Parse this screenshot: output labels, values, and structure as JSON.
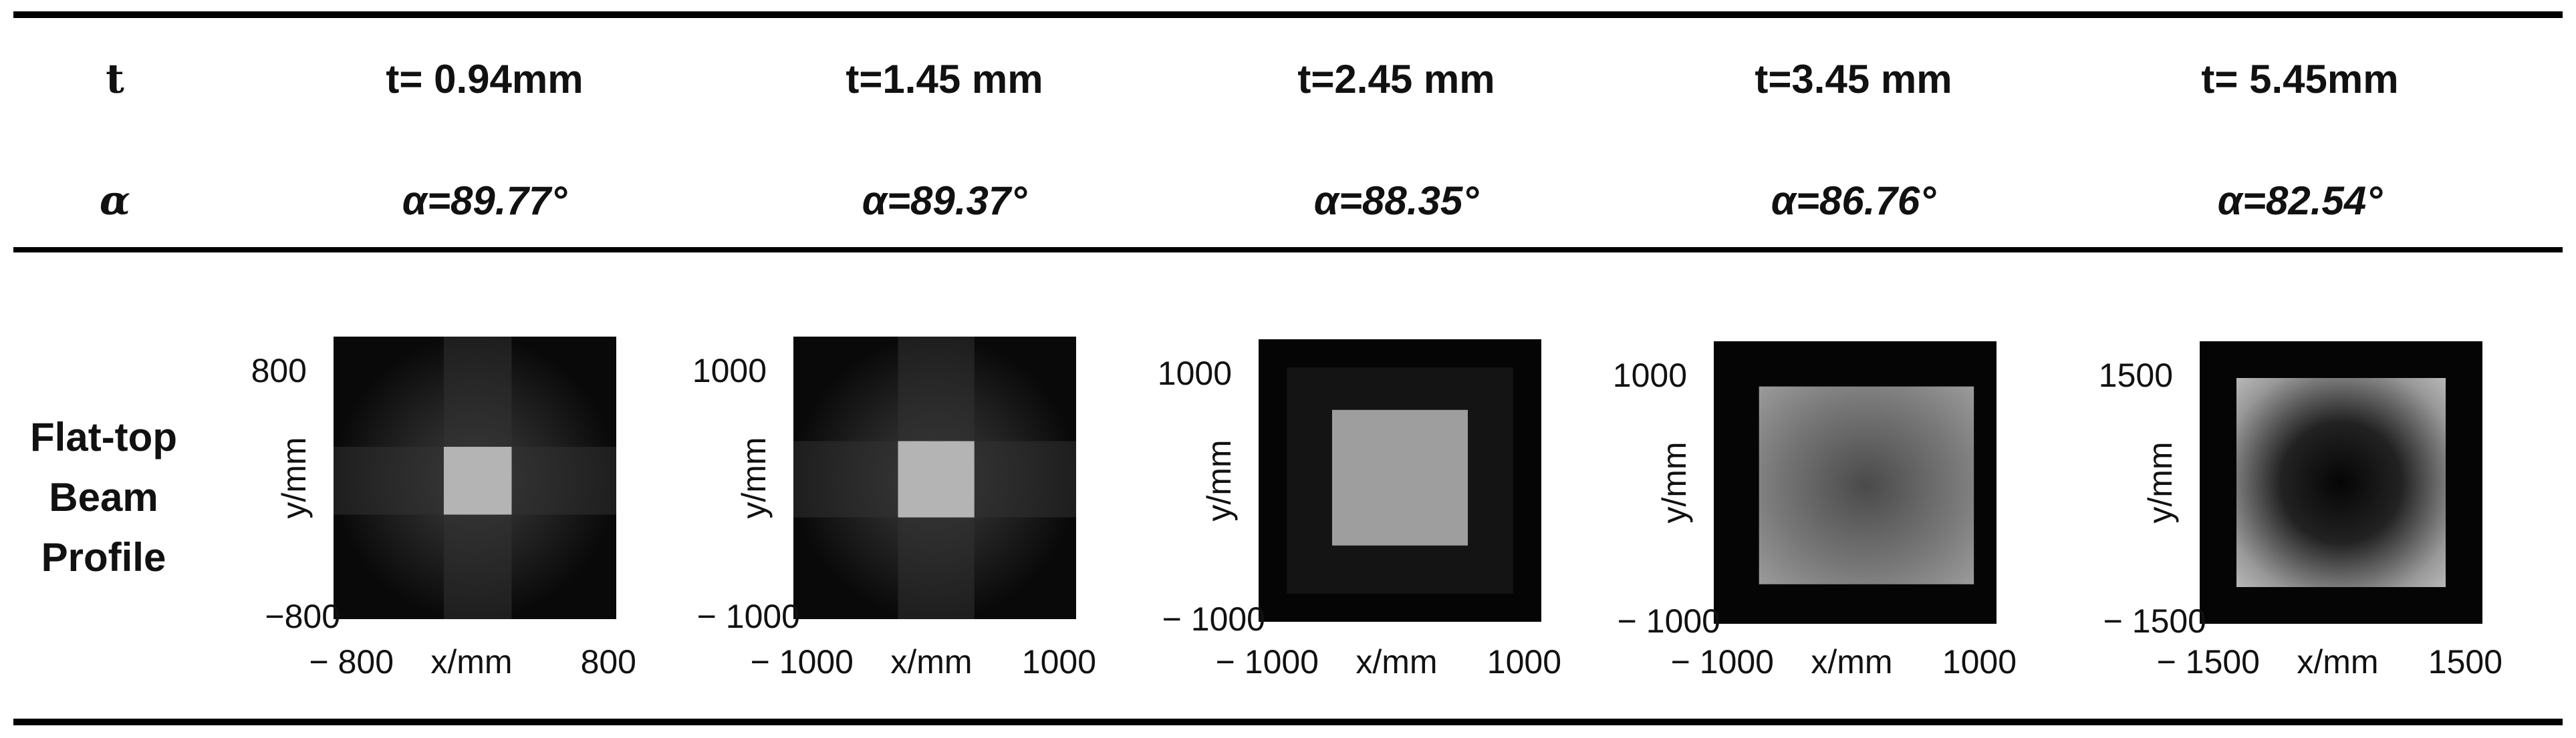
{
  "table": {
    "rows": [
      [
        "t",
        "t= 0.94mm",
        "t=1.45 mm",
        "t=2.45 mm",
        "t=3.45 mm",
        "t= 5.45mm"
      ],
      [
        "α",
        "α=89.77°",
        "α=89.37°",
        "α=88.35°",
        "α=86.76°",
        "α=82.54°"
      ]
    ]
  },
  "profile": {
    "label": [
      "Flat-top",
      "Beam",
      "Profile"
    ],
    "panels": [
      {
        "y_top": "800",
        "y_bottom": "−800",
        "x_left": "− 800",
        "x_label": "x/mm",
        "x_right": "800",
        "y_label": "y/mm"
      },
      {
        "y_top": "1000",
        "y_bottom": "− 1000",
        "x_left": "− 1000",
        "x_label": "x/mm",
        "x_right": "1000",
        "y_label": "y/mm"
      },
      {
        "y_top": "1000",
        "y_bottom": "− 1000",
        "x_left": "− 1000",
        "x_label": "x/mm",
        "x_right": "1000",
        "y_label": "y/mm"
      },
      {
        "y_top": "1000",
        "y_bottom": "− 1000",
        "x_left": "− 1000",
        "x_label": "x/mm",
        "x_right": "1000",
        "y_label": "y/mm"
      },
      {
        "y_top": "1500",
        "y_bottom": "− 1500",
        "x_left": "− 1500",
        "x_label": "x/mm",
        "x_right": "1500",
        "y_label": "y/mm"
      }
    ]
  }
}
